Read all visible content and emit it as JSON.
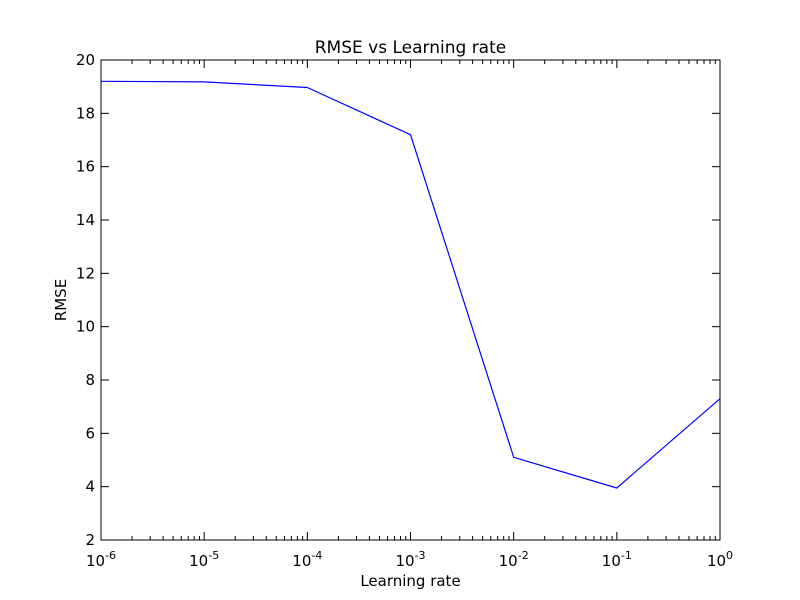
{
  "chart_data": {
    "type": "line",
    "title": "RMSE vs Learning rate",
    "xlabel": "Learning rate",
    "ylabel": "RMSE",
    "x_scale": "log",
    "xlim": [
      1e-06,
      1
    ],
    "ylim": [
      2,
      20
    ],
    "grid": false,
    "x_ticks": [
      {
        "base": "10",
        "exp": "-6",
        "value": 1e-06
      },
      {
        "base": "10",
        "exp": "-5",
        "value": 1e-05
      },
      {
        "base": "10",
        "exp": "-4",
        "value": 0.0001
      },
      {
        "base": "10",
        "exp": "-3",
        "value": 0.001
      },
      {
        "base": "10",
        "exp": "-2",
        "value": 0.01
      },
      {
        "base": "10",
        "exp": "-1",
        "value": 0.1
      },
      {
        "base": "10",
        "exp": "0",
        "value": 1
      }
    ],
    "y_ticks": [
      2,
      4,
      6,
      8,
      10,
      12,
      14,
      16,
      18,
      20
    ],
    "series": [
      {
        "color": "#0000ff",
        "x": [
          1e-06,
          1e-05,
          0.0001,
          0.001,
          0.01,
          0.1,
          1
        ],
        "y": [
          19.2,
          19.18,
          18.97,
          17.2,
          5.1,
          3.95,
          7.3
        ]
      }
    ]
  }
}
